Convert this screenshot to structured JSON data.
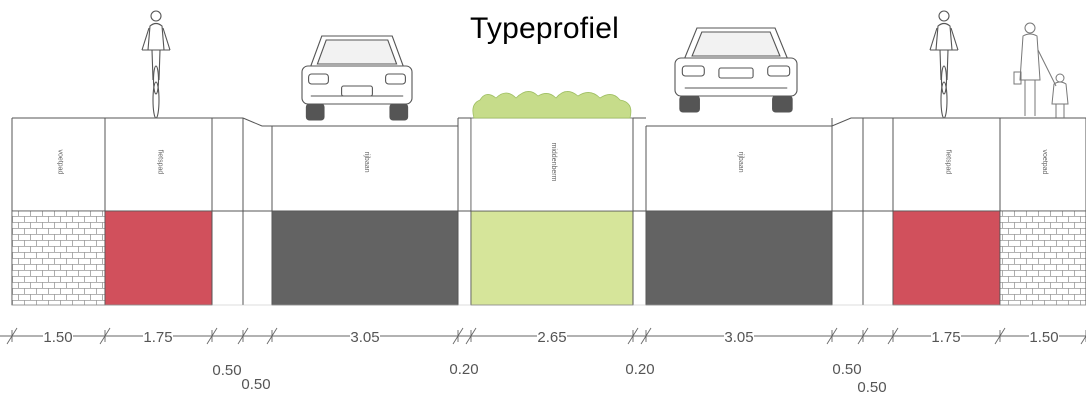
{
  "title": "Typeprofiel",
  "colors": {
    "fietspad": "#d1505c",
    "rijbaan": "#636363",
    "middenberm": "#d6e59a",
    "hedge": "#c6dc8a",
    "paving": "#ffffff",
    "line": "#555555"
  },
  "lanes": [
    {
      "label": "voetpad",
      "width": "1.50",
      "type": "paving"
    },
    {
      "label": "fietspad",
      "width": "1.75",
      "type": "fietspad"
    },
    {
      "label": "",
      "width": "0.50",
      "type": "gap"
    },
    {
      "label": "",
      "width": "0.50",
      "type": "gap"
    },
    {
      "label": "rijbaan",
      "width": "3.05",
      "type": "rijbaan"
    },
    {
      "label": "",
      "width": "0.20",
      "type": "gap"
    },
    {
      "label": "middenberm",
      "width": "2.65",
      "type": "middenberm"
    },
    {
      "label": "",
      "width": "0.20",
      "type": "gap"
    },
    {
      "label": "rijbaan",
      "width": "3.05",
      "type": "rijbaan"
    },
    {
      "label": "",
      "width": "0.50",
      "type": "gap"
    },
    {
      "label": "",
      "width": "0.50",
      "type": "gap"
    },
    {
      "label": "fietspad",
      "width": "1.75",
      "type": "fietspad"
    },
    {
      "label": "voetpad",
      "width": "1.50",
      "type": "paving"
    }
  ],
  "icons": [
    "cyclist-icon",
    "car-front-icon",
    "hedge-icon",
    "car-rear-icon",
    "cyclist-icon",
    "pedestrian-family-icon"
  ]
}
